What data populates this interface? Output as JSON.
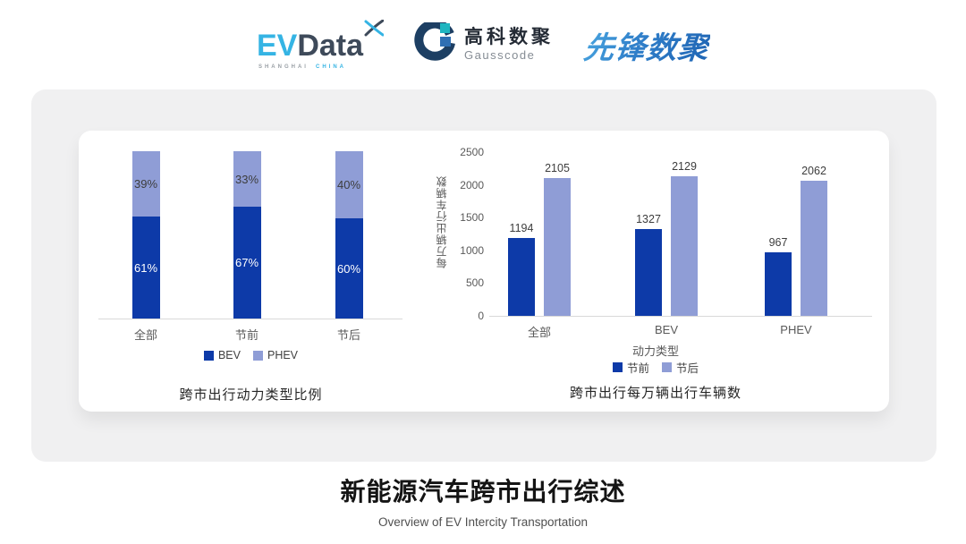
{
  "header": {
    "evdata": {
      "ev": "EV",
      "data": "Data",
      "tagline_left": "SHANGHAI",
      "tagline_right": "CHINA"
    },
    "gausscode": {
      "name_cn": "高科数聚",
      "name_en": "Gausscode"
    },
    "pioneer": {
      "name": "先锋数聚"
    }
  },
  "colors": {
    "bev_dark_blue": "#0d3aa8",
    "phev_light_blue": "#8f9dd6",
    "axis_gray": "#d9d9d9",
    "evdata_cyan": "#35b4e4",
    "evdata_dark": "#3e4a5a",
    "gauss_navy": "#1d3f63",
    "gauss_teal": "#1fb5c0",
    "gauss_blue": "#2f6fb3",
    "pioneer_blue": "#2f7ec9"
  },
  "chart_data": [
    {
      "type": "bar",
      "subtype": "stacked-percent",
      "title": "跨市出行动力类型比例",
      "categories": [
        "全部",
        "节前",
        "节后"
      ],
      "series": [
        {
          "name": "BEV",
          "color": "#0d3aa8",
          "values": [
            61,
            67,
            60
          ],
          "labels": [
            "61%",
            "67%",
            "60%"
          ],
          "label_color": "#ffffff"
        },
        {
          "name": "PHEV",
          "color": "#8f9dd6",
          "values": [
            39,
            33,
            40
          ],
          "labels": [
            "39%",
            "33%",
            "40%"
          ],
          "label_color": "#3d3d3d"
        }
      ],
      "ylim": [
        0,
        100
      ],
      "grid": false,
      "legend_position": "bottom"
    },
    {
      "type": "bar",
      "subtype": "grouped",
      "title": "跨市出行每万辆出行车辆数",
      "categories": [
        "全部",
        "BEV",
        "PHEV"
      ],
      "xlabel": "动力类型",
      "ylabel": "每万辆出行车辆数",
      "yticks": [
        0,
        500,
        1000,
        1500,
        2000,
        2500
      ],
      "ylim": [
        0,
        2500
      ],
      "series": [
        {
          "name": "节前",
          "color": "#0d3aa8",
          "values": [
            1194,
            1327,
            967
          ]
        },
        {
          "name": "节后",
          "color": "#8f9dd6",
          "values": [
            2105,
            2129,
            2062
          ]
        }
      ],
      "grid": false,
      "legend_position": "bottom"
    }
  ],
  "footer": {
    "title": "新能源汽车跨市出行综述",
    "subtitle": "Overview of EV Intercity Transportation"
  }
}
